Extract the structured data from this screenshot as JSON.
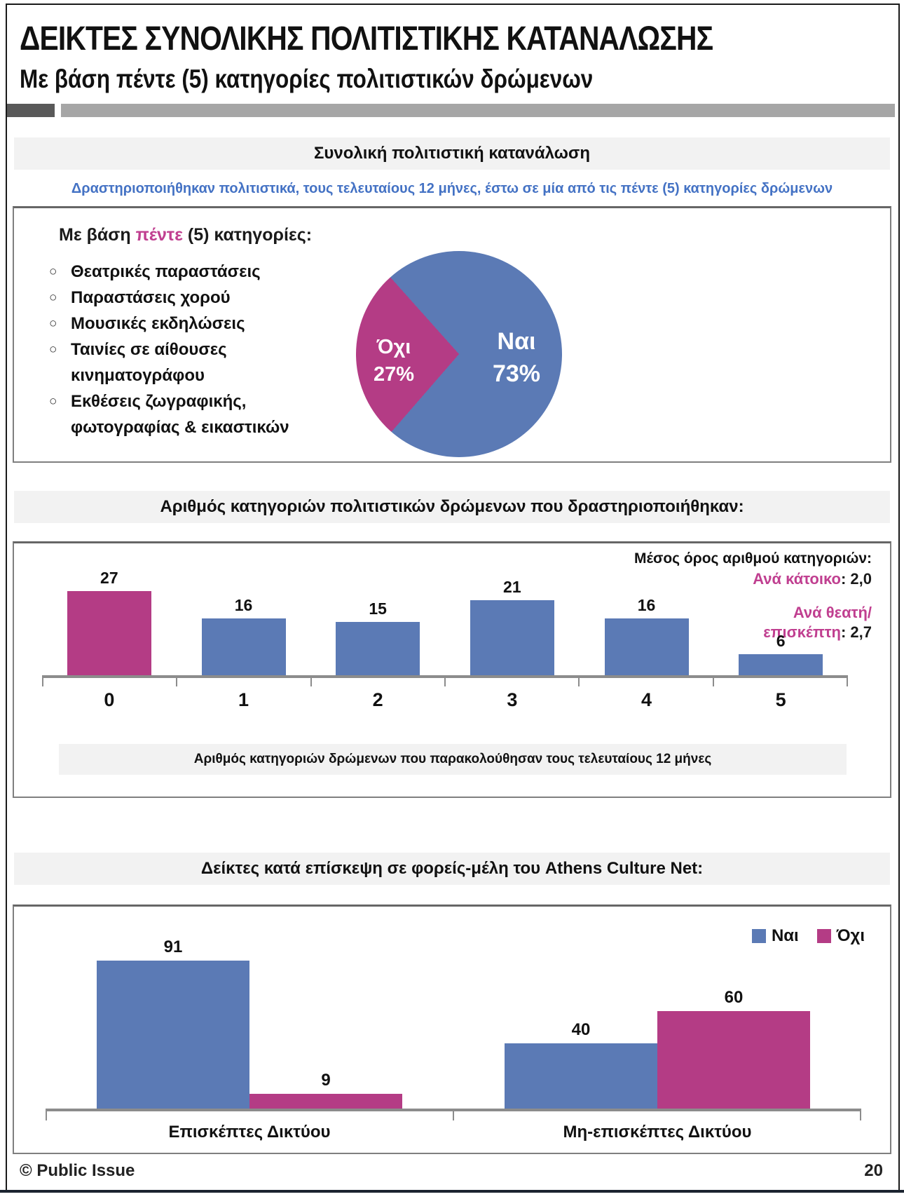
{
  "page": {
    "title": "ΔΕΙΚΤΕΣ ΣΥΝΟΛΙΚΗΣ ΠΟΛΙΤΙΣΤΙΚΗΣ ΚΑΤΑΝΑΛΩΣΗΣ",
    "subtitle": "Με βάση πέντε (5) κατηγορίες πολιτιστικών δρώμενων",
    "footer_copyright": "© Public Issue",
    "page_number": "20"
  },
  "colors": {
    "blue": "#5B7AB5",
    "magenta": "#B43C85",
    "magenta_text": "#C03F90",
    "note_blue": "#4472C4"
  },
  "section_consumption": {
    "heading": "Συνολική πολιτιστική κατανάλωση",
    "note": "Δραστηριοποιήθηκαν πολιτιστικά, τους τελευταίους 12 μήνες, έστω σε μία από τις πέντε (5) κατηγορίες δρώμενων",
    "basis_prefix": "Με βάση ",
    "basis_highlight": "πέντε",
    "basis_suffix": " (5) κατηγορίες:",
    "bullet_glyph": "○",
    "categories": [
      "Θεατρικές παραστάσεις",
      "Παραστάσεις χορού",
      "Μουσικές εκδηλώσεις",
      "Ταινίες σε αίθουσες κινηματογράφου",
      "Εκθέσεις ζωγραφικής, φωτογραφίας & εικαστικών"
    ]
  },
  "section_categories": {
    "heading": "Αριθμός κατηγοριών πολιτιστικών δρώμενων που δραστηριοποιήθηκαν:",
    "avg_title": "Μέσος όρος αριθμού κατηγοριών:",
    "avg_resident_label": "Ανά κάτοικο",
    "avg_resident_value": ": 2,0",
    "avg_spectator_label_line1": "Ανά θεατή/",
    "avg_spectator_label_line2": "επισκέπτη",
    "avg_spectator_value": ": 2,7",
    "axis_note": "Αριθμός κατηγοριών δρώμενων που παρακολούθησαν τους τελευταίους 12 μήνες"
  },
  "section_acn": {
    "heading": "Δείκτες κατά επίσκεψη σε φορείς-μέλη του Athens Culture Net:"
  },
  "chart_data": [
    {
      "type": "pie",
      "title": "Συνολική πολιτιστική κατανάλωση",
      "labels": [
        "Ναι",
        "Όχι"
      ],
      "values": [
        73,
        27
      ],
      "values_display": [
        "73%",
        "27%"
      ],
      "unit": "%",
      "colors": [
        "#5B7AB5",
        "#B43C85"
      ],
      "start_angle_deg": 221
    },
    {
      "type": "bar",
      "title": "Αριθμός κατηγοριών πολιτιστικών δρώμενων που δραστηριοποιήθηκαν",
      "categories": [
        "0",
        "1",
        "2",
        "3",
        "4",
        "5"
      ],
      "values": [
        27,
        16,
        15,
        21,
        16,
        6
      ],
      "bar_colors": [
        "#B43C85",
        "#5B7AB5",
        "#5B7AB5",
        "#5B7AB5",
        "#5B7AB5",
        "#5B7AB5"
      ],
      "xlabel": "Αριθμός κατηγοριών δρώμενων που παρακολούθησαν τους τελευταίους 12 μήνες",
      "ylabel": "",
      "ylim": [
        0,
        30
      ],
      "grid": false,
      "annotations": [
        "Μέσος όρος αριθμού κατηγοριών:",
        "Ανά κάτοικο: 2,0",
        "Ανά θεατή/ επισκέπτη: 2,7"
      ]
    },
    {
      "type": "bar",
      "title": "Δείκτες κατά επίσκεψη σε φορείς-μέλη του Athens Culture Net",
      "categories": [
        "Επισκέπτες Δικτύου",
        "Μη-επισκέπτες Δικτύου"
      ],
      "series": [
        {
          "name": "Ναι",
          "values": [
            91,
            40
          ]
        },
        {
          "name": "Όχι",
          "values": [
            9,
            60
          ]
        }
      ],
      "colors": [
        "#5B7AB5",
        "#B43C85"
      ],
      "legend_position": "top-right",
      "ylim": [
        0,
        100
      ],
      "grid": false
    }
  ]
}
